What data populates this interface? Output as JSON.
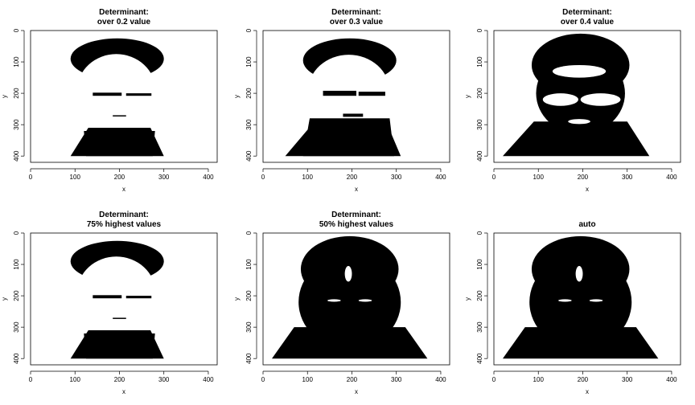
{
  "chart_data": [
    {
      "type": "heatmap",
      "title_lines": [
        "Determinant:",
        "over 0.2 value"
      ],
      "xlabel": "x",
      "ylabel": "y",
      "xlim": [
        0,
        420
      ],
      "ylim": [
        0,
        420
      ],
      "y_reversed": true,
      "xticks": [
        0,
        100,
        200,
        300,
        400
      ],
      "yticks": [
        0,
        100,
        200,
        300,
        400
      ],
      "grid": false,
      "legend": "none",
      "image": {
        "content": "binary black/white thresholded face silhouette",
        "hair": {
          "cx": 195,
          "cy": 90,
          "rx": 105,
          "ry": 65
        },
        "face": {
          "cx": 193,
          "cy": 190,
          "rx": 88,
          "ry": 115
        },
        "neck": [
          [
            130,
            310
          ],
          [
            270,
            310
          ],
          [
            300,
            400
          ],
          [
            90,
            400
          ]
        ],
        "eyebrows": [
          [
            [
              140,
              198
            ],
            [
              205,
              208
            ]
          ],
          [
            [
              215,
              200
            ],
            [
              272,
              208
            ]
          ]
        ],
        "mouth": [
          [
            185,
            270
          ],
          [
            215,
            272
          ]
        ],
        "chin_shadow": [
          [
            120,
            320
          ],
          [
            280,
            320
          ],
          [
            275,
            400
          ],
          [
            125,
            400
          ]
        ]
      }
    },
    {
      "type": "heatmap",
      "title_lines": [
        "Determinant:",
        "over 0.3 value"
      ],
      "xlabel": "x",
      "ylabel": "y",
      "xlim": [
        0,
        420
      ],
      "ylim": [
        0,
        420
      ],
      "y_reversed": true,
      "xticks": [
        0,
        100,
        200,
        300,
        400
      ],
      "yticks": [
        0,
        100,
        200,
        300,
        400
      ],
      "grid": false,
      "legend": "none",
      "image": {
        "content": "binary black/white thresholded face silhouette",
        "hair": {
          "cx": 195,
          "cy": 95,
          "rx": 105,
          "ry": 70
        },
        "face": {
          "cx": 193,
          "cy": 195,
          "rx": 92,
          "ry": 118
        },
        "neck": [
          [
            110,
            300
          ],
          [
            280,
            300
          ],
          [
            310,
            400
          ],
          [
            50,
            400
          ]
        ],
        "eyebrows": [
          [
            [
              135,
              192
            ],
            [
              210,
              208
            ]
          ],
          [
            [
              215,
              195
            ],
            [
              275,
              208
            ]
          ]
        ],
        "mouth": [
          [
            180,
            265
          ],
          [
            225,
            275
          ]
        ],
        "chin_shadow": [
          [
            105,
            280
          ],
          [
            285,
            280
          ],
          [
            295,
            400
          ],
          [
            90,
            400
          ]
        ]
      }
    },
    {
      "type": "heatmap",
      "title_lines": [
        "Determinant:",
        "over 0.4 value"
      ],
      "xlabel": "x",
      "ylabel": "y",
      "xlim": [
        0,
        420
      ],
      "ylim": [
        0,
        420
      ],
      "y_reversed": true,
      "xticks": [
        0,
        100,
        200,
        300,
        400
      ],
      "yticks": [
        0,
        100,
        200,
        300,
        400
      ],
      "grid": false,
      "legend": "none",
      "image": {
        "content": "binary thresholded face silhouette, mostly black",
        "hair": {
          "cx": 195,
          "cy": 110,
          "rx": 110,
          "ry": 100
        },
        "face": {
          "cx": 195,
          "cy": 200,
          "rx": 100,
          "ry": 130
        },
        "neck": [
          [
            90,
            290
          ],
          [
            300,
            290
          ],
          [
            350,
            400
          ],
          [
            20,
            400
          ]
        ],
        "light_patches": [
          {
            "cx": 150,
            "cy": 220,
            "rx": 40,
            "ry": 20
          },
          {
            "cx": 240,
            "cy": 220,
            "rx": 45,
            "ry": 20
          },
          {
            "cx": 192,
            "cy": 130,
            "rx": 60,
            "ry": 20
          },
          {
            "cx": 192,
            "cy": 290,
            "rx": 25,
            "ry": 8
          }
        ]
      }
    },
    {
      "type": "heatmap",
      "title_lines": [
        "Determinant:",
        "75% highest values"
      ],
      "xlabel": "x",
      "ylabel": "y",
      "xlim": [
        0,
        420
      ],
      "ylim": [
        0,
        420
      ],
      "y_reversed": true,
      "xticks": [
        0,
        100,
        200,
        300,
        400
      ],
      "yticks": [
        0,
        100,
        200,
        300,
        400
      ],
      "grid": false,
      "legend": "none",
      "image": {
        "content": "binary black/white thresholded face silhouette",
        "hair": {
          "cx": 195,
          "cy": 90,
          "rx": 105,
          "ry": 65
        },
        "face": {
          "cx": 193,
          "cy": 190,
          "rx": 88,
          "ry": 115
        },
        "neck": [
          [
            130,
            310
          ],
          [
            270,
            310
          ],
          [
            300,
            400
          ],
          [
            90,
            400
          ]
        ],
        "eyebrows": [
          [
            [
              140,
              198
            ],
            [
              205,
              208
            ]
          ],
          [
            [
              215,
              200
            ],
            [
              272,
              208
            ]
          ]
        ],
        "mouth": [
          [
            185,
            270
          ],
          [
            215,
            272
          ]
        ],
        "chin_shadow": [
          [
            120,
            320
          ],
          [
            280,
            320
          ],
          [
            275,
            400
          ],
          [
            125,
            400
          ]
        ]
      }
    },
    {
      "type": "heatmap",
      "title_lines": [
        "Determinant:",
        "50% highest values"
      ],
      "xlabel": "x",
      "ylabel": "y",
      "xlim": [
        0,
        420
      ],
      "ylim": [
        0,
        420
      ],
      "y_reversed": true,
      "xticks": [
        0,
        100,
        200,
        300,
        400
      ],
      "yticks": [
        0,
        100,
        200,
        300,
        400
      ],
      "grid": false,
      "legend": "none",
      "image": {
        "content": "binary thresholded face silhouette, almost fully black",
        "hair": {
          "cx": 195,
          "cy": 115,
          "rx": 110,
          "ry": 105
        },
        "face": {
          "cx": 195,
          "cy": 220,
          "rx": 115,
          "ry": 150
        },
        "neck": [
          [
            70,
            300
          ],
          [
            320,
            300
          ],
          [
            370,
            400
          ],
          [
            20,
            400
          ]
        ],
        "light_patches": [
          {
            "cx": 192,
            "cy": 130,
            "rx": 8,
            "ry": 25
          },
          {
            "cx": 160,
            "cy": 215,
            "rx": 15,
            "ry": 4
          },
          {
            "cx": 230,
            "cy": 215,
            "rx": 15,
            "ry": 4
          }
        ]
      }
    },
    {
      "type": "heatmap",
      "title_lines": [
        "auto"
      ],
      "xlabel": "x",
      "ylabel": "y",
      "xlim": [
        0,
        420
      ],
      "ylim": [
        0,
        420
      ],
      "y_reversed": true,
      "xticks": [
        0,
        100,
        200,
        300,
        400
      ],
      "yticks": [
        0,
        100,
        200,
        300,
        400
      ],
      "grid": false,
      "legend": "none",
      "image": {
        "content": "binary thresholded face silhouette, almost fully black",
        "hair": {
          "cx": 195,
          "cy": 115,
          "rx": 110,
          "ry": 105
        },
        "face": {
          "cx": 195,
          "cy": 220,
          "rx": 115,
          "ry": 150
        },
        "neck": [
          [
            70,
            300
          ],
          [
            320,
            300
          ],
          [
            370,
            400
          ],
          [
            20,
            400
          ]
        ],
        "light_patches": [
          {
            "cx": 192,
            "cy": 130,
            "rx": 8,
            "ry": 25
          },
          {
            "cx": 160,
            "cy": 215,
            "rx": 15,
            "ry": 4
          },
          {
            "cx": 230,
            "cy": 215,
            "rx": 15,
            "ry": 4
          }
        ]
      }
    }
  ]
}
